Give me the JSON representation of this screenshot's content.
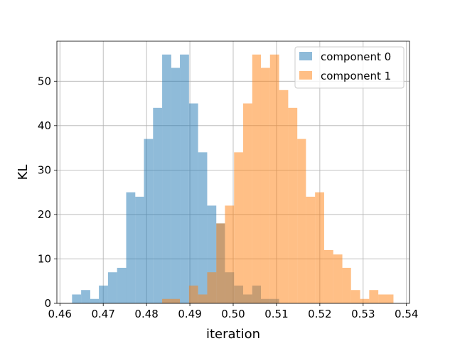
{
  "chart_data": {
    "type": "histogram",
    "xlabel": "iteration",
    "ylabel": "KL",
    "xlim": [
      0.4593,
      0.5407
    ],
    "ylim": [
      0,
      59
    ],
    "xticks": [
      0.46,
      0.47,
      0.48,
      0.49,
      0.5,
      0.51,
      0.52,
      0.53,
      0.54
    ],
    "xtick_labels": [
      "0.46",
      "0.47",
      "0.48",
      "0.49",
      "0.50",
      "0.51",
      "0.52",
      "0.53",
      "0.54"
    ],
    "yticks": [
      0,
      10,
      20,
      30,
      40,
      50
    ],
    "ytick_labels": [
      "0",
      "10",
      "20",
      "30",
      "40",
      "50"
    ],
    "grid": true,
    "legend_position": "top-right",
    "series": [
      {
        "name": "component 0",
        "color": "#1f77b4",
        "alpha": 0.5,
        "bin_edges": [
          0.4628,
          0.4649,
          0.467,
          0.469,
          0.4711,
          0.4732,
          0.4753,
          0.4774,
          0.4794,
          0.4815,
          0.4836,
          0.4857,
          0.4877,
          0.4898,
          0.4919,
          0.494,
          0.4961,
          0.4981,
          0.5002,
          0.5023,
          0.5044,
          0.5064,
          0.5085,
          0.5106,
          0.5127,
          0.5148,
          0.5168
        ],
        "counts": [
          2,
          3,
          1,
          4,
          7,
          8,
          25,
          24,
          37,
          44,
          56,
          53,
          56,
          45,
          34,
          22,
          18,
          7,
          4,
          2,
          4,
          1,
          1,
          0,
          0,
          0
        ]
      },
      {
        "name": "component 1",
        "color": "#ff7f0e",
        "alpha": 0.5,
        "bin_edges": [
          0.4836,
          0.4857,
          0.4877,
          0.4898,
          0.4919,
          0.494,
          0.4961,
          0.4981,
          0.5002,
          0.5023,
          0.5044,
          0.5064,
          0.5085,
          0.5106,
          0.5127,
          0.5148,
          0.5168,
          0.5189,
          0.521,
          0.5231,
          0.5252,
          0.5272,
          0.5293,
          0.5314,
          0.5335,
          0.5356,
          0.537
        ],
        "counts": [
          1,
          1,
          0,
          4,
          2,
          7,
          18,
          22,
          34,
          45,
          56,
          53,
          56,
          48,
          44,
          37,
          24,
          25,
          12,
          11,
          8,
          3,
          1,
          3,
          2,
          2
        ]
      }
    ]
  }
}
